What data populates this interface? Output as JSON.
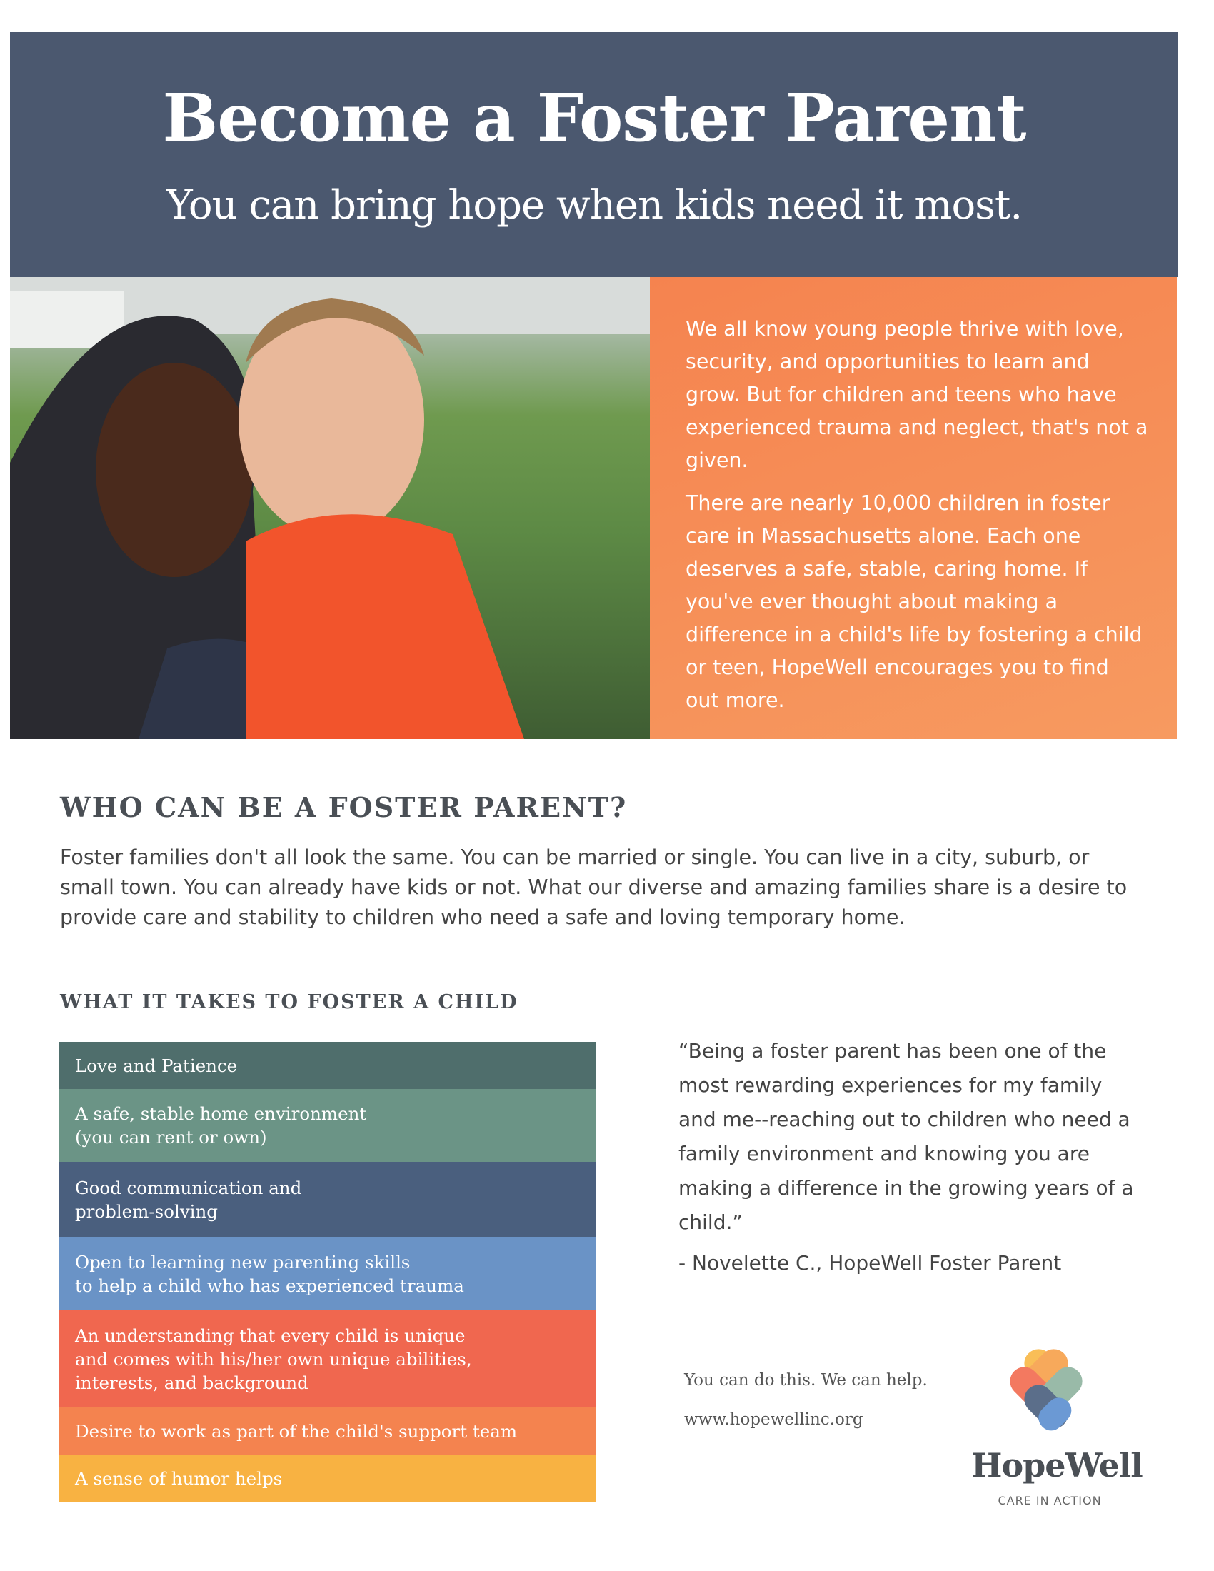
{
  "header": {
    "title": "Become a Foster Parent",
    "subtitle": "You can bring hope when kids need it most.",
    "color": "#4b586f"
  },
  "intro": {
    "paragraphs": [
      "We all know young people thrive with love, security, and opportunities to learn and grow. But for children and teens who have experienced trauma and neglect, that's not a given.",
      "There are nearly 10,000 children in foster care in Massachusetts alone. Each one deserves a safe, stable, caring home. If you've ever thought about making a difference in a child's life by fostering a child or teen, HopeWell encourages you to find out more."
    ],
    "color": "#f5854f"
  },
  "who": {
    "heading": "WHO CAN BE A FOSTER PARENT?",
    "body": "Foster families don't all look the same. You can be married or single. You can live in a city, suburb, or small town. You can already have kids or not. What our diverse and amazing families share is a desire to provide care and stability to children who need a safe and loving temporary home."
  },
  "takes": {
    "heading": "WHAT IT TAKES TO FOSTER A CHILD",
    "items": [
      {
        "label": "Love and Patience",
        "color": "#4f6e6c"
      },
      {
        "label": "A safe, stable home environment\n(you can rent or own)",
        "color": "#6b9486"
      },
      {
        "label": "Good communication and\nproblem-solving",
        "color": "#4a5f7e"
      },
      {
        "label": "Open to learning new parenting skills\nto help a child who has experienced trauma",
        "color": "#6a93c6"
      },
      {
        "label": "An understanding that every child is unique\nand comes with his/her own unique abilities,\ninterests, and background",
        "color": "#f0674f"
      },
      {
        "label": "Desire to work as part of the child's support team",
        "color": "#f4834f"
      },
      {
        "label": "A sense of humor helps",
        "color": "#f8b242"
      }
    ]
  },
  "testimonial": {
    "quote": "“Being a foster parent has been one of the most rewarding experiences for my family and me--reaching out to children who need a family environment and knowing you are making a difference in the growing years of a child.”",
    "attribution": "- Novelette C., HopeWell Foster Parent"
  },
  "footer": {
    "tagline_text": "You can do this. We can help.",
    "url": "www.hopewellinc.org",
    "brand": "HopeWell",
    "brand_tagline": "CARE IN ACTION"
  }
}
